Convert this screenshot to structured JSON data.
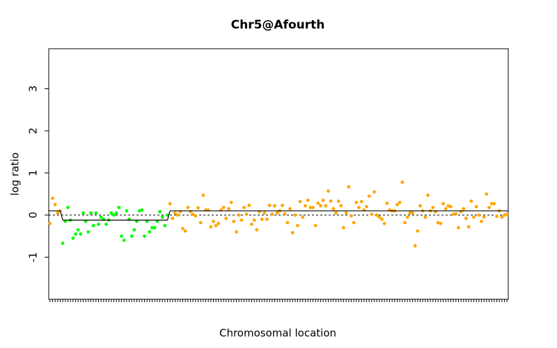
{
  "chart_data": {
    "type": "scatter",
    "title": "Chr5@Afourth",
    "xlabel": "Chromosomal location",
    "ylabel": "log ratio",
    "xlim": [
      0.5,
      180.5
    ],
    "ylim": [
      -2,
      3.95
    ],
    "yticks": [
      -1,
      0,
      1,
      2,
      3
    ],
    "zero_line": 0,
    "series": [
      {
        "color": "#ffa500",
        "x": [
          1,
          2,
          3,
          4,
          5,
          48,
          49,
          50,
          51,
          52,
          53,
          54,
          55,
          56,
          57,
          58,
          59,
          60,
          61,
          62,
          63,
          64,
          65,
          66,
          67,
          68,
          69,
          70,
          71,
          72,
          73,
          74,
          75,
          76,
          77,
          78,
          79,
          80,
          81,
          82,
          83,
          84,
          85,
          86,
          87,
          88,
          89,
          90,
          91,
          92,
          93,
          94,
          95,
          96,
          97,
          98,
          99,
          100,
          101,
          102,
          103,
          104,
          105,
          106,
          107,
          108,
          109,
          110,
          111,
          112,
          113,
          114,
          115,
          116,
          117,
          118,
          119,
          120,
          121,
          122,
          123,
          124,
          125,
          126,
          127,
          128,
          129,
          130,
          131,
          132,
          133,
          134,
          135,
          136,
          137,
          138,
          139,
          140,
          141,
          142,
          143,
          144,
          145,
          146,
          147,
          148,
          149,
          150,
          151,
          152,
          153,
          154,
          155,
          156,
          157,
          158,
          159,
          160,
          161,
          162,
          163,
          164,
          165,
          166,
          167,
          168,
          169,
          170,
          171,
          172,
          173,
          174,
          175,
          176,
          177,
          178,
          179,
          180
        ],
        "values": [
          -0.2,
          0.4,
          0.25,
          0.05,
          0.1,
          0.27,
          -0.08,
          0.05,
          0.0,
          0.08,
          -0.32,
          -0.38,
          0.18,
          0.08,
          0.02,
          -0.02,
          0.17,
          -0.18,
          0.47,
          0.12,
          0.12,
          -0.28,
          -0.15,
          -0.25,
          -0.2,
          0.12,
          0.18,
          -0.08,
          0.15,
          0.3,
          -0.15,
          -0.4,
          0.0,
          -0.12,
          0.18,
          0.02,
          0.23,
          -0.22,
          -0.12,
          -0.35,
          0.08,
          -0.1,
          0.05,
          -0.1,
          0.23,
          0.02,
          0.22,
          0.05,
          0.1,
          0.23,
          0.03,
          -0.18,
          0.15,
          -0.42,
          0.0,
          -0.25,
          0.32,
          -0.05,
          0.22,
          0.35,
          0.18,
          0.18,
          -0.25,
          0.28,
          0.22,
          0.35,
          0.22,
          0.57,
          0.33,
          0.15,
          0.05,
          0.33,
          0.22,
          -0.3,
          0.05,
          0.67,
          -0.02,
          -0.18,
          0.3,
          0.18,
          0.32,
          0.12,
          0.2,
          0.45,
          0.02,
          0.55,
          0.0,
          -0.05,
          -0.1,
          -0.2,
          0.28,
          0.12,
          0.1,
          0.1,
          0.25,
          0.3,
          0.78,
          -0.18,
          -0.05,
          0.05,
          0.05,
          -0.73,
          -0.38,
          0.22,
          0.1,
          -0.05,
          0.47,
          0.1,
          0.18,
          0.08,
          -0.18,
          -0.2,
          0.27,
          0.15,
          0.22,
          0.2,
          0.02,
          0.03,
          -0.3,
          0.08,
          0.15,
          -0.08,
          -0.28,
          0.33,
          -0.05,
          0.2,
          0.0,
          -0.15,
          -0.05,
          0.5,
          0.18,
          0.27,
          0.27,
          -0.03,
          0.1,
          -0.05,
          0.0,
          0.02
        ]
      },
      {
        "color": "#00ff00",
        "x": [
          6,
          7,
          8,
          9,
          10,
          11,
          12,
          13,
          14,
          15,
          16,
          17,
          18,
          19,
          20,
          21,
          22,
          23,
          24,
          25,
          26,
          27,
          28,
          29,
          30,
          31,
          32,
          33,
          34,
          35,
          36,
          37,
          38,
          39,
          40,
          41,
          42,
          43,
          44,
          45,
          46,
          47
        ],
        "values": [
          -0.67,
          -0.15,
          0.18,
          -0.12,
          -0.55,
          -0.45,
          -0.35,
          -0.45,
          0.05,
          -0.15,
          -0.4,
          0.05,
          -0.25,
          0.05,
          -0.22,
          -0.05,
          -0.1,
          -0.22,
          -0.12,
          0.05,
          0.0,
          0.05,
          0.18,
          -0.5,
          -0.6,
          0.1,
          -0.1,
          -0.5,
          -0.35,
          -0.15,
          0.1,
          0.12,
          -0.5,
          -0.15,
          -0.4,
          -0.3,
          -0.3,
          -0.15,
          0.08,
          -0.05,
          -0.25,
          0.0
        ]
      }
    ],
    "segments": [
      {
        "x": [
          1,
          5
        ],
        "value": 0.1
      },
      {
        "x": [
          6,
          47
        ],
        "value": -0.12
      },
      {
        "x": [
          48,
          180
        ],
        "value": 0.1
      }
    ]
  }
}
